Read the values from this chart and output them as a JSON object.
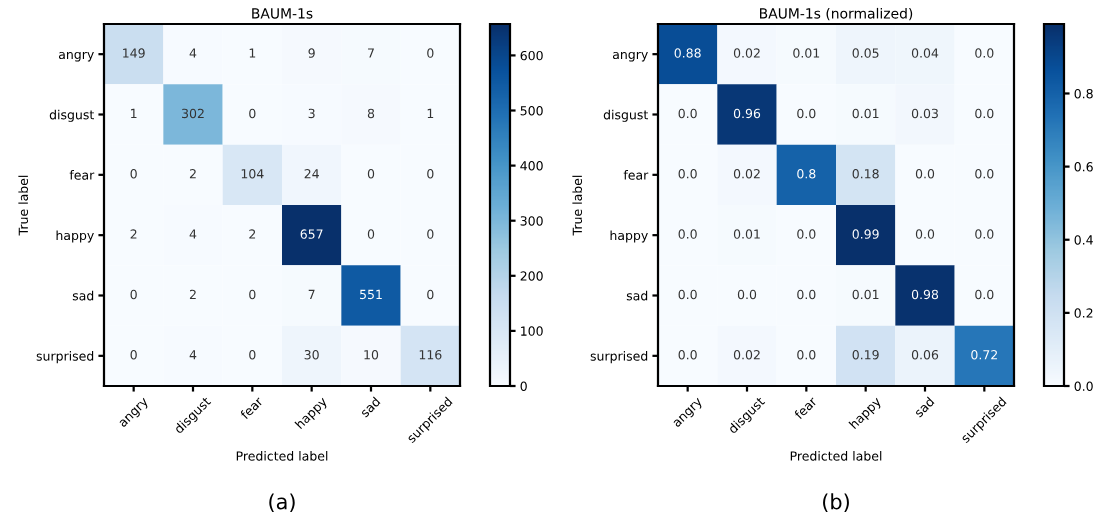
{
  "chart_data": [
    {
      "type": "heatmap",
      "title": "BAUM-1s",
      "xlabel": "Predicted label",
      "ylabel": "True label",
      "categories": [
        "angry",
        "disgust",
        "fear",
        "happy",
        "sad",
        "surprised"
      ],
      "y_categories": [
        "angry",
        "disgust",
        "fear",
        "happy",
        "sad",
        "surprised"
      ],
      "cells": [
        [
          149,
          4,
          1,
          9,
          7,
          0
        ],
        [
          1,
          302,
          0,
          3,
          8,
          1
        ],
        [
          0,
          2,
          104,
          24,
          0,
          0
        ],
        [
          2,
          4,
          2,
          657,
          0,
          0
        ],
        [
          0,
          2,
          0,
          7,
          551,
          0
        ],
        [
          0,
          4,
          0,
          30,
          10,
          116
        ]
      ],
      "data_labels": true,
      "clim": [
        0,
        657
      ],
      "cticks": [
        0,
        100,
        200,
        300,
        400,
        500,
        600
      ],
      "annotations": [
        "(a)"
      ]
    },
    {
      "type": "heatmap",
      "title": "BAUM-1s (normalized)",
      "xlabel": "Predicted label",
      "ylabel": "True label",
      "categories": [
        "angry",
        "disgust",
        "fear",
        "happy",
        "sad",
        "surprised"
      ],
      "y_categories": [
        "angry",
        "disgust",
        "fear",
        "happy",
        "sad",
        "surprised"
      ],
      "cells": [
        [
          0.88,
          0.02,
          0.01,
          0.05,
          0.04,
          0
        ],
        [
          0,
          0.96,
          0,
          0.01,
          0.03,
          0
        ],
        [
          0,
          0.02,
          0.8,
          0.18,
          0,
          0
        ],
        [
          0,
          0.01,
          0,
          0.99,
          0,
          0
        ],
        [
          0,
          0,
          0,
          0.01,
          0.98,
          0
        ],
        [
          0,
          0.02,
          0,
          0.19,
          0.06,
          0.72
        ]
      ],
      "cell_labels": [
        [
          "0.88",
          "0.02",
          "0.01",
          "0.05",
          "0.04",
          "0.0"
        ],
        [
          "0.0",
          "0.96",
          "0.0",
          "0.01",
          "0.03",
          "0.0"
        ],
        [
          "0.0",
          "0.02",
          "0.8",
          "0.18",
          "0.0",
          "0.0"
        ],
        [
          "0.0",
          "0.01",
          "0.0",
          "0.99",
          "0.0",
          "0.0"
        ],
        [
          "0.0",
          "0.0",
          "0.0",
          "0.01",
          "0.98",
          "0.0"
        ],
        [
          "0.0",
          "0.02",
          "0.0",
          "0.19",
          "0.06",
          "0.72"
        ]
      ],
      "clim": [
        0,
        0.99
      ],
      "cticks": [
        {
          "value": 0,
          "label": "0.0"
        },
        {
          "value": 0.2,
          "label": "0.2"
        },
        {
          "value": 0.4,
          "label": "0.4"
        },
        {
          "value": 0.6,
          "label": "0.6"
        },
        {
          "value": 0.8,
          "label": "0.8"
        }
      ],
      "annotations": [
        "(b)"
      ]
    }
  ]
}
